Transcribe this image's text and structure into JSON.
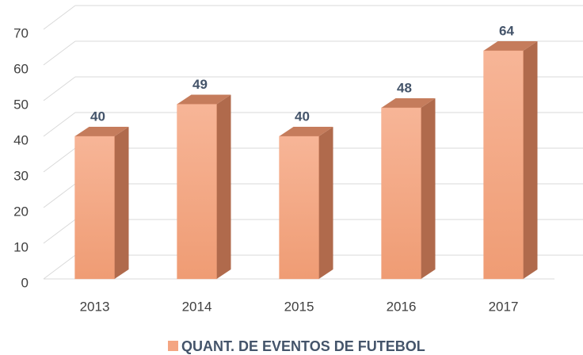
{
  "chart_data": {
    "type": "bar3d",
    "categories": [
      "2013",
      "2014",
      "2015",
      "2016",
      "2017"
    ],
    "series": [
      {
        "name": "QUANT. DE EVENTOS DE FUTEBOL",
        "color": "#f4a582",
        "values": [
          40,
          49,
          40,
          48,
          64
        ]
      }
    ],
    "ylim": [
      0,
      70
    ],
    "yticks": [
      0,
      10,
      20,
      30,
      40,
      50,
      60,
      70
    ],
    "grid": true,
    "legend": "bottom"
  }
}
